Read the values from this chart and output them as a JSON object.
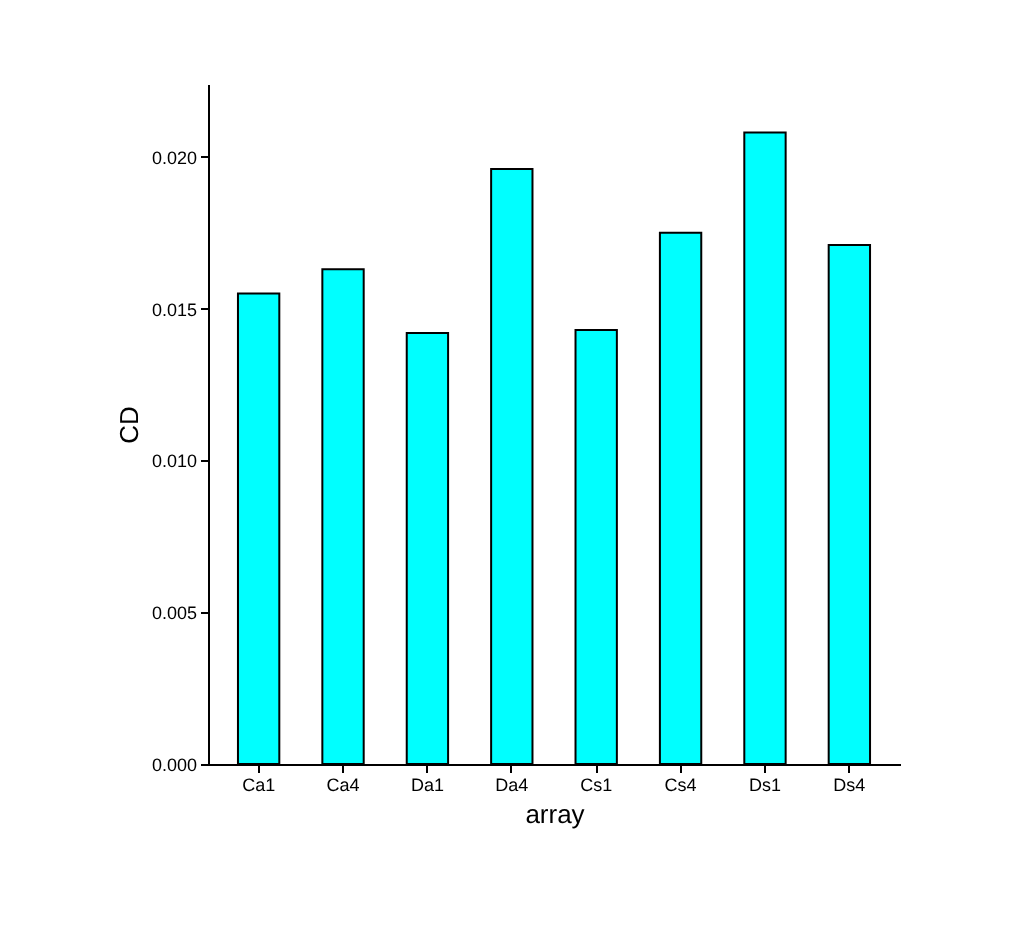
{
  "chart_data": {
    "type": "bar",
    "xlabel": "array",
    "ylabel": "CD",
    "categories": [
      "Ca1",
      "Ca4",
      "Da1",
      "Da4",
      "Cs1",
      "Cs4",
      "Ds1",
      "Ds4"
    ],
    "values": [
      0.0155,
      0.0163,
      0.0142,
      0.0196,
      0.0143,
      0.0175,
      0.0208,
      0.0171
    ],
    "color": "#00ffff",
    "ylim": [
      0,
      0.0224
    ],
    "yticks": [
      {
        "value": 0,
        "label": "0.000"
      },
      {
        "value": 0.005,
        "label": "0.005"
      },
      {
        "value": 0.01,
        "label": "0.010"
      },
      {
        "value": 0.015,
        "label": "0.015"
      },
      {
        "value": 0.02,
        "label": "0.020"
      }
    ],
    "grid": false
  }
}
